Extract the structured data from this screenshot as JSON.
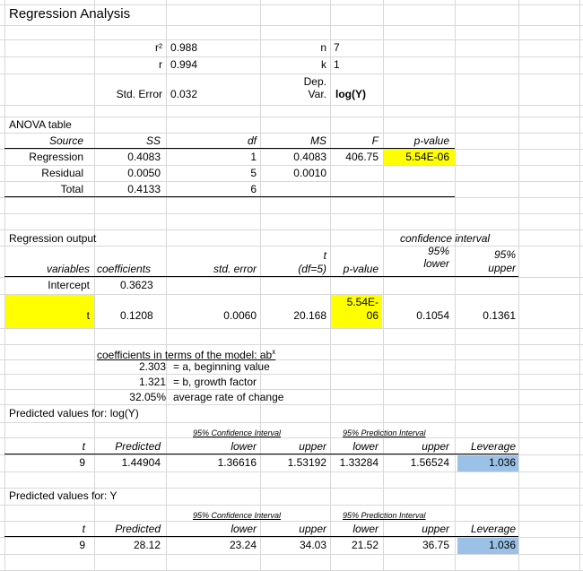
{
  "title": "Regression Analysis",
  "summary": {
    "r2_label": "r²",
    "r2_value": "0.988",
    "r_label": "r",
    "r_value": "0.994",
    "n_label": "n",
    "n_value": "7",
    "k_label": "k",
    "k_value": "1",
    "dep_label_1": "Dep.",
    "dep_label_2": "Var.",
    "dep_value": "log(Y)",
    "stderr_label": "Std. Error",
    "stderr_value": "0.032"
  },
  "anova": {
    "title": "ANOVA table",
    "headers": {
      "source": "Source",
      "ss": "SS",
      "df": "df",
      "ms": "MS",
      "f": "F",
      "pvalue": "p-value"
    },
    "regression": {
      "label": "Regression",
      "ss": "0.4083",
      "df": "1",
      "ms": "0.4083",
      "f": "406.75",
      "pvalue": "5.54E-06"
    },
    "residual": {
      "label": "Residual",
      "ss": "0.0050",
      "df": "5",
      "ms": "0.0010"
    },
    "total": {
      "label": "Total",
      "ss": "0.4133",
      "df": "6"
    }
  },
  "regression_output": {
    "title": "Regression output",
    "ci_header": "confidence interval",
    "ci_pct_lower": "95%",
    "ci_pct_upper": "95%",
    "t_header_top": "t",
    "headers": {
      "variables": "variables",
      "coefficients": "coefficients",
      "std_error": "std. error",
      "t_df": "(df=5)",
      "pvalue": "p-value",
      "lower": "lower",
      "upper": "upper"
    },
    "intercept": {
      "label": "Intercept",
      "coefficient": "0.3623"
    },
    "t_row": {
      "label": "t",
      "coefficient": "0.1208",
      "std_error": "0.0060",
      "t_value": "20.168",
      "pvalue_line1": "5.54E-",
      "pvalue_line2": "06",
      "lower": "0.1054",
      "upper": "0.1361"
    }
  },
  "model": {
    "heading": "coefficients in terms of the model: ab",
    "heading_sup": "x",
    "a_value": "2.303",
    "a_desc": "= a, beginning value",
    "b_value": "1.321",
    "b_desc": "= b, growth factor",
    "rate_value": "32.05%",
    "rate_desc": "average rate of change"
  },
  "pred_log": {
    "title": "Predicted values for: log(Y)",
    "ci_title": "95% Confidence Interval",
    "pi_title": "95% Prediction Interval",
    "headers": {
      "t": "t",
      "predicted": "Predicted",
      "ci_lower": "lower",
      "ci_upper": "upper",
      "pi_lower": "lower",
      "pi_upper": "upper",
      "leverage": "Leverage"
    },
    "row": {
      "t": "9",
      "predicted": "1.44904",
      "ci_lower": "1.36616",
      "ci_upper": "1.53192",
      "pi_lower": "1.33284",
      "pi_upper": "1.56524",
      "leverage": "1.036"
    }
  },
  "pred_y": {
    "title": "Predicted values for: Y",
    "ci_title": "95% Confidence Interval",
    "pi_title": "95% Prediction Interval",
    "headers": {
      "t": "t",
      "predicted": "Predicted",
      "ci_lower": "lower",
      "ci_upper": "upper",
      "pi_lower": "lower",
      "pi_upper": "upper",
      "leverage": "Leverage"
    },
    "row": {
      "t": "9",
      "predicted": "28.12",
      "ci_lower": "23.24",
      "ci_upper": "34.03",
      "pi_lower": "21.52",
      "pi_upper": "36.75",
      "leverage": "1.036"
    }
  },
  "colors": {
    "highlight_yellow": "#ffff00",
    "highlight_blue": "#9bc2e6",
    "gridline": "#d8d8d8"
  }
}
